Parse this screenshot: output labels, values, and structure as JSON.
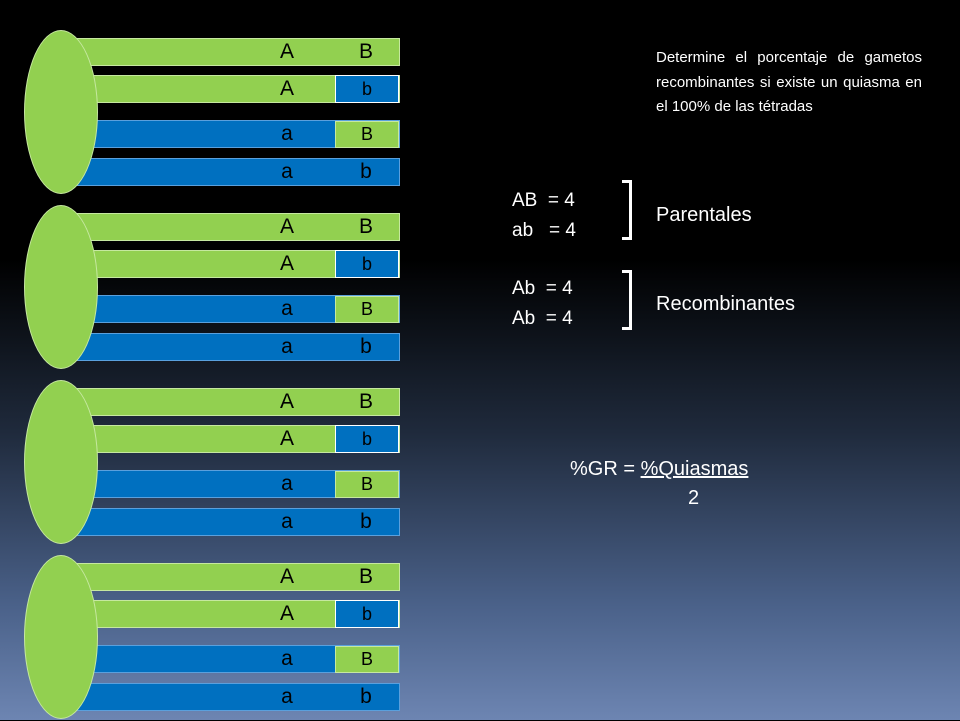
{
  "groups": [
    {
      "rows": [
        {
          "color": "green",
          "left": "A",
          "right": "B"
        },
        {
          "color": "green",
          "left": "A",
          "right": "b"
        },
        {
          "color": "blue",
          "left": "a",
          "right": "B"
        },
        {
          "color": "blue",
          "left": "a",
          "right": "b"
        }
      ]
    },
    {
      "rows": [
        {
          "color": "green",
          "left": "A",
          "right": "B"
        },
        {
          "color": "green",
          "left": "A",
          "right": "b"
        },
        {
          "color": "blue",
          "left": "a",
          "right": "B"
        },
        {
          "color": "blue",
          "left": "a",
          "right": "b"
        }
      ]
    },
    {
      "rows": [
        {
          "color": "green",
          "left": "A",
          "right": "B"
        },
        {
          "color": "green",
          "left": "A",
          "right": "b"
        },
        {
          "color": "blue",
          "left": "a",
          "right": "B"
        },
        {
          "color": "blue",
          "left": "a",
          "right": "b"
        }
      ]
    },
    {
      "rows": [
        {
          "color": "green",
          "left": "A",
          "right": "B"
        },
        {
          "color": "green",
          "left": "A",
          "right": "b"
        },
        {
          "color": "blue",
          "left": "a",
          "right": "B"
        },
        {
          "color": "blue",
          "left": "a",
          "right": "b"
        }
      ]
    }
  ],
  "question": "Determine el porcentaje de gametos recombinantes si existe un quiasma en el 100% de las tétradas",
  "parentales": {
    "eq1": "AB  = 4",
    "eq2": "ab   = 4",
    "label": "Parentales"
  },
  "recombinantes": {
    "eq1": "Ab  = 4",
    "eq2": "Ab  = 4",
    "label": "Recombinantes"
  },
  "formula": {
    "lhs": "%GR = ",
    "numerator": "%Quiasmas",
    "denominator": "2"
  },
  "colors": {
    "green": "#92d050",
    "blue": "#0070c0"
  }
}
